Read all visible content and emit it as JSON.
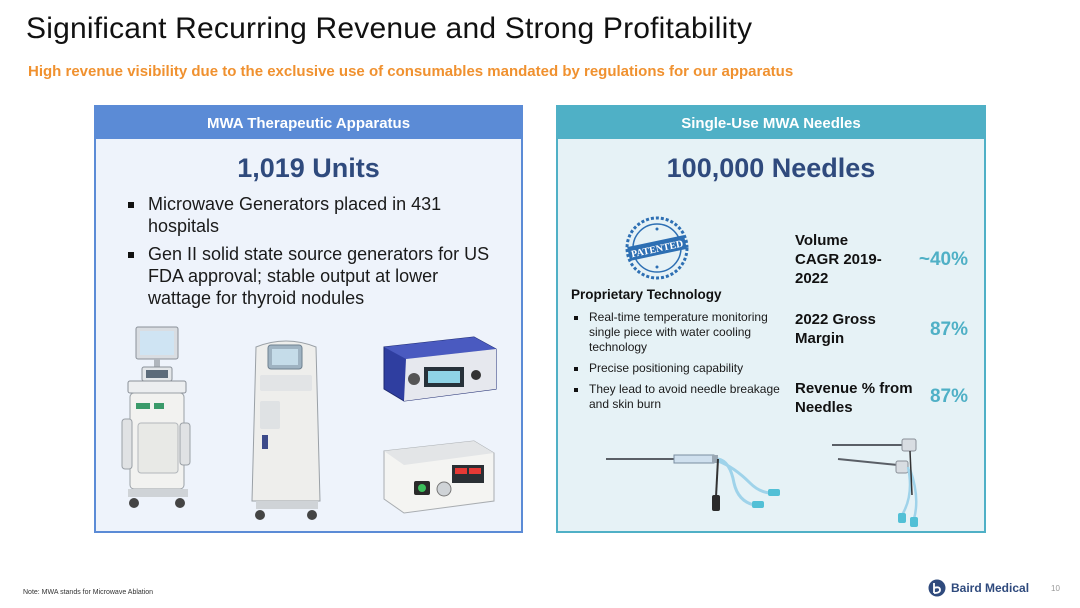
{
  "slide": {
    "title": "Significant Recurring Revenue and Strong Profitability",
    "subtitle": "High revenue visibility due to the exclusive use of consumables mandated by regulations for our apparatus",
    "footnote": "Note: MWA stands for Microwave Ablation",
    "page_number": "10",
    "brand": "Baird Medical"
  },
  "left_panel": {
    "header": "MWA Therapeutic Apparatus",
    "big_number": "1,019 Units",
    "bullets": [
      "Microwave Generators placed in 431 hospitals",
      "Gen II solid state source generators for US FDA approval; stable output at lower wattage for thyroid nodules"
    ]
  },
  "right_panel": {
    "header": "Single-Use MWA Needles",
    "big_number": "100,000 Needles",
    "stamp_text": "PATENTED",
    "proprietary_title": "Proprietary Technology",
    "proprietary_bullets": [
      "Real-time temperature monitoring single piece with water cooling technology",
      "Precise positioning capability",
      "They lead to avoid needle breakage and skin burn"
    ],
    "metrics": [
      {
        "label": "Volume CAGR 2019-2022",
        "value": "~40%"
      },
      {
        "label": "2022 Gross Margin",
        "value": "87%"
      },
      {
        "label": "Revenue % from Needles",
        "value": "87%"
      }
    ]
  },
  "colors": {
    "title": "#111111",
    "subtitle": "#f0912f",
    "left_header": "#5b8bd6",
    "right_header": "#4fb0c6",
    "big_number": "#2f4a7d",
    "metric_value": "#4fb0c6"
  }
}
